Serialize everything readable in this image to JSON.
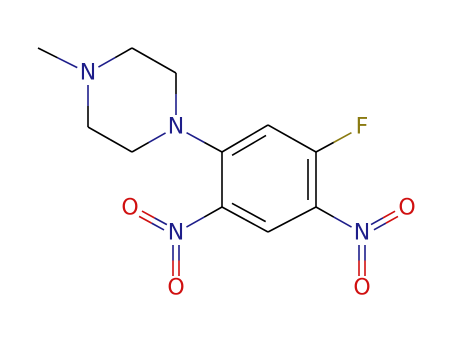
{
  "atoms": [
    {
      "label": "N",
      "color": "#1e1e8a"
    },
    {
      "label": "N",
      "color": "#1e1e8a"
    },
    {
      "label": "F",
      "color": "#8a7a10"
    },
    {
      "label": "N",
      "color": "#1e1e8a"
    },
    {
      "label": "O",
      "color": "#d01010"
    },
    {
      "label": "O",
      "color": "#d01010"
    },
    {
      "label": "N",
      "color": "#1e1e8a"
    },
    {
      "label": "O",
      "color": "#d01010"
    },
    {
      "label": "O",
      "color": "#d01010"
    }
  ]
}
